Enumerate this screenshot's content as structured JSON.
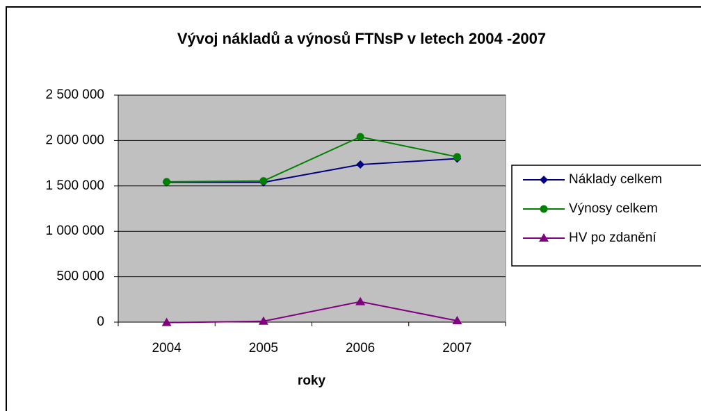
{
  "chart_data": {
    "type": "line",
    "title": "Vývoj nákladů a výnosů FTNsP v letech 2004 -2007",
    "x_label": "roky",
    "categories": [
      "2004",
      "2005",
      "2006",
      "2007"
    ],
    "series": [
      {
        "name": "Náklady celkem",
        "color": "#000080",
        "marker": "diamond",
        "values": [
          1540000,
          1540000,
          1735000,
          1800000
        ]
      },
      {
        "name": "Výnosy celkem",
        "color": "#008000",
        "marker": "circle",
        "values": [
          1545000,
          1555000,
          2040000,
          1820000
        ]
      },
      {
        "name": "HV po zdanění",
        "color": "#800080",
        "marker": "triangle",
        "values": [
          -5000,
          10000,
          225000,
          15000
        ]
      }
    ],
    "ylim": [
      0,
      2500000
    ],
    "yticks": [
      0,
      {
        "value": 500000,
        "label": "500 000"
      },
      {
        "value": 1000000,
        "label": "1 000 000"
      },
      {
        "value": 1500000,
        "label": "1 500 000"
      },
      {
        "value": 2000000,
        "label": "2 000 000"
      },
      {
        "value": 2500000,
        "label": "2 500 000"
      }
    ],
    "grid": true,
    "legend": "right"
  }
}
